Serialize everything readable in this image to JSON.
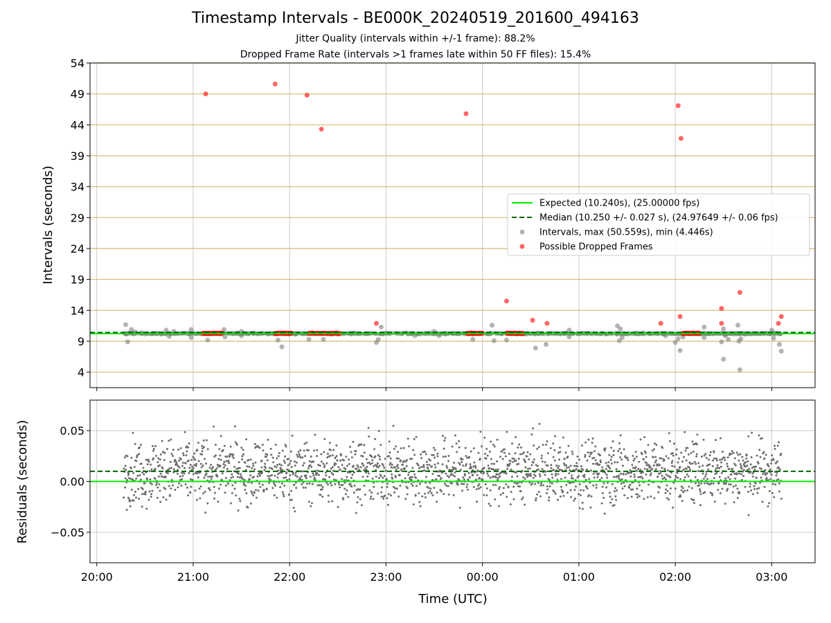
{
  "title": "Timestamp Intervals - BE000K_20240519_201600_494163",
  "subtitle_1": "Jitter Quality (intervals within +/-1 frame): 88.2%",
  "subtitle_2": "Dropped Frame Rate (intervals >1 frames late within 50 FF files): 15.4%",
  "colors": {
    "expected": "#00ee00",
    "median": "#006400",
    "intervals": "#808080",
    "dropped": "#ff0000",
    "top_grid": "#d2b96e",
    "grid": "#c8c8c8",
    "residual_points": "#6e6e6e"
  },
  "chart_data": [
    {
      "type": "scatter",
      "ylabel": "Intervals (seconds)",
      "xlabel": "",
      "xlim": [
        19.93,
        27.45
      ],
      "ylim": [
        1.5,
        54
      ],
      "y_ticks": [
        4,
        9,
        14,
        19,
        24,
        29,
        34,
        39,
        44,
        49,
        54
      ],
      "x_ticks": [
        {
          "value": 20,
          "label": "20:00"
        },
        {
          "value": 21,
          "label": "21:00"
        },
        {
          "value": 22,
          "label": "22:00"
        },
        {
          "value": 23,
          "label": "23:00"
        },
        {
          "value": 24,
          "label": "00:00"
        },
        {
          "value": 25,
          "label": "01:00"
        },
        {
          "value": 26,
          "label": "02:00"
        },
        {
          "value": 27,
          "label": "03:00"
        }
      ],
      "grid": true,
      "legend_position": "center-right",
      "expected": 10.24,
      "median": 10.25,
      "time_range": [
        20.28,
        27.1
      ],
      "series": [
        {
          "name": "Intervals, max (50.559s), min (4.446s)",
          "points": [
            [
              20.3,
              11.7
            ],
            [
              20.32,
              8.9
            ],
            [
              20.36,
              10.9
            ],
            [
              20.4,
              10.5
            ],
            [
              20.72,
              10.8
            ],
            [
              20.75,
              9.8
            ],
            [
              20.8,
              10.6
            ],
            [
              20.98,
              10.9
            ],
            [
              20.98,
              9.6
            ],
            [
              21.15,
              9.2
            ],
            [
              21.32,
              10.9
            ],
            [
              21.33,
              9.7
            ],
            [
              21.5,
              10.6
            ],
            [
              21.5,
              9.9
            ],
            [
              21.88,
              9.2
            ],
            [
              21.92,
              8.1
            ],
            [
              22.2,
              9.3
            ],
            [
              22.35,
              9.3
            ],
            [
              22.9,
              8.8
            ],
            [
              22.92,
              9.3
            ],
            [
              22.95,
              11.3
            ],
            [
              23.3,
              9.9
            ],
            [
              23.5,
              10.6
            ],
            [
              23.55,
              9.9
            ],
            [
              23.9,
              9.3
            ],
            [
              24.1,
              11.6
            ],
            [
              24.12,
              9.1
            ],
            [
              24.25,
              9.2
            ],
            [
              24.58,
              10.3
            ],
            [
              24.55,
              7.9
            ],
            [
              24.66,
              8.5
            ],
            [
              24.9,
              10.8
            ],
            [
              24.9,
              9.7
            ],
            [
              25.4,
              11.5
            ],
            [
              25.42,
              9.1
            ],
            [
              25.43,
              11.0
            ],
            [
              25.45,
              9.6
            ],
            [
              25.9,
              9.9
            ],
            [
              26.0,
              8.8
            ],
            [
              26.03,
              9.4
            ],
            [
              26.05,
              7.5
            ],
            [
              26.08,
              9.7
            ],
            [
              26.3,
              11.3
            ],
            [
              26.3,
              9.6
            ],
            [
              26.5,
              6.1
            ],
            [
              26.5,
              11.0
            ],
            [
              26.48,
              8.9
            ],
            [
              26.52,
              9.9
            ],
            [
              26.55,
              9.3
            ],
            [
              26.65,
              11.6
            ],
            [
              26.66,
              9.0
            ],
            [
              26.67,
              4.4
            ],
            [
              26.68,
              9.4
            ],
            [
              27.0,
              10.8
            ],
            [
              27.05,
              10.3
            ],
            [
              27.08,
              8.5
            ],
            [
              27.1,
              7.4
            ],
            [
              27.02,
              9.5
            ]
          ]
        },
        {
          "name": "Possible Dropped Frames",
          "points": [
            [
              21.13,
              49.0
            ],
            [
              21.85,
              50.6
            ],
            [
              22.18,
              48.8
            ],
            [
              22.33,
              43.3
            ],
            [
              22.9,
              11.9
            ],
            [
              23.83,
              45.8
            ],
            [
              24.25,
              15.5
            ],
            [
              24.52,
              12.4
            ],
            [
              24.67,
              11.9
            ],
            [
              25.85,
              11.9
            ],
            [
              26.03,
              47.1
            ],
            [
              26.05,
              13.0
            ],
            [
              26.06,
              41.8
            ],
            [
              26.48,
              14.3
            ],
            [
              26.48,
              11.9
            ],
            [
              26.67,
              16.9
            ],
            [
              27.07,
              11.9
            ],
            [
              27.1,
              13.0
            ]
          ],
          "clusters": [
            [
              21.1,
              21.3
            ],
            [
              21.85,
              22.02
            ],
            [
              22.2,
              22.52
            ],
            [
              23.84,
              24.0
            ],
            [
              24.25,
              24.42
            ],
            [
              26.08,
              26.25
            ]
          ]
        }
      ],
      "legend": [
        {
          "label": "Expected (10.240s), (25.00000 fps)",
          "style": "solid-line",
          "color": "#00ee00"
        },
        {
          "label": "Median (10.250 +/- 0.027 s), (24.97649 +/- 0.06 fps)",
          "style": "dashed-line",
          "color": "#006400"
        },
        {
          "label": "Intervals, max (50.559s), min (4.446s)",
          "style": "marker",
          "color": "#808080"
        },
        {
          "label": "Possible Dropped Frames",
          "style": "marker",
          "color": "#ff0000"
        }
      ]
    },
    {
      "type": "scatter",
      "ylabel": "Residuals (seconds)",
      "xlabel": "Time (UTC)",
      "xlim": [
        19.93,
        27.45
      ],
      "ylim": [
        -0.08,
        0.08
      ],
      "y_ticks": [
        {
          "value": 0.05,
          "label": "0.05"
        },
        {
          "value": 0.0,
          "label": "0.00"
        },
        {
          "value": -0.05,
          "label": "−0.05"
        }
      ],
      "grid": true,
      "expected_line": 0.0,
      "median_line": 0.01,
      "residual_range": [
        -0.06,
        0.078
      ],
      "point_count": 2100
    }
  ]
}
